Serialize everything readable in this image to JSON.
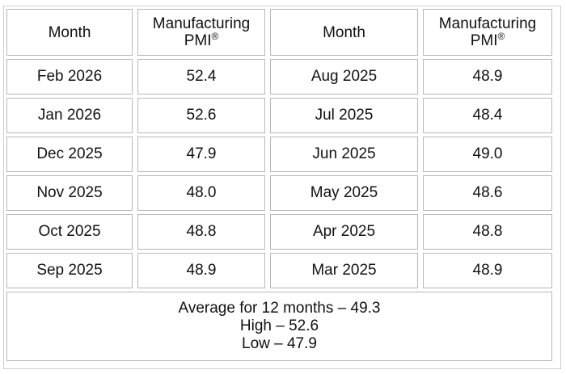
{
  "table": {
    "header": [
      {
        "text": "Month"
      },
      {
        "text": "Manufacturing",
        "line2": "PMI",
        "mark": "®"
      },
      {
        "text": "Month"
      },
      {
        "text": "Manufacturing",
        "line2": "PMI",
        "mark": "®"
      }
    ],
    "rows": [
      [
        "Feb 2026",
        "52.4",
        "Aug 2025",
        "48.9"
      ],
      [
        "Jan 2026",
        "52.6",
        "Jul 2025",
        "48.4"
      ],
      [
        "Dec 2025",
        "47.9",
        "Jun 2025",
        "49.0"
      ],
      [
        "Nov 2025",
        "48.0",
        "May 2025",
        "48.6"
      ],
      [
        "Oct 2025",
        "48.8",
        "Apr 2025",
        "48.8"
      ],
      [
        "Sep 2025",
        "48.9",
        "Mar 2025",
        "48.9"
      ]
    ],
    "footer": [
      "Average for 12 months – 49.3",
      "High – 52.6",
      "Low – 47.9"
    ]
  }
}
